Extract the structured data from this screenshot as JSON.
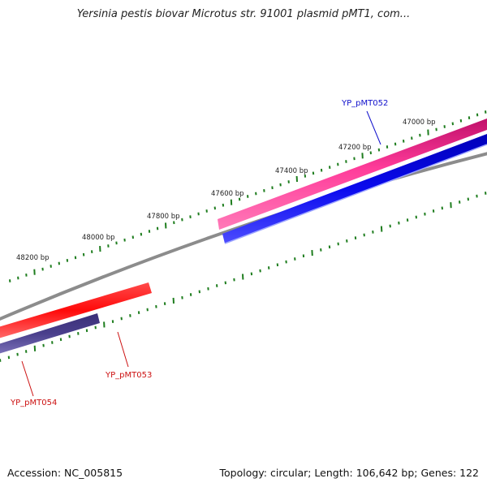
{
  "title": "Yersinia pestis biovar Microtus str. 91001 plasmid pMT1, com...",
  "footer": {
    "accession": "Accession: NC_005815",
    "summary": "Topology: circular; Length: 106,642 bp; Genes: 122"
  },
  "backbone_color": "#8c8c8c",
  "tick_color": "#1e7d1e",
  "bp_ticks": [
    "48200 bp",
    "48000 bp",
    "47800 bp",
    "47600 bp",
    "47400 bp",
    "47200 bp",
    "47000 bp"
  ],
  "genes": [
    {
      "label": "YP_pMT052",
      "color": "#ff2a8a",
      "label_color": "#1010cc"
    },
    {
      "label": "YP_pMT053",
      "color": "#ff1111",
      "label_color": "#cc1111"
    },
    {
      "label": "YP_pMT054",
      "color": "#4a3f8c",
      "label_color": "#cc1111"
    }
  ],
  "other_feature_color": "#0a0aee"
}
